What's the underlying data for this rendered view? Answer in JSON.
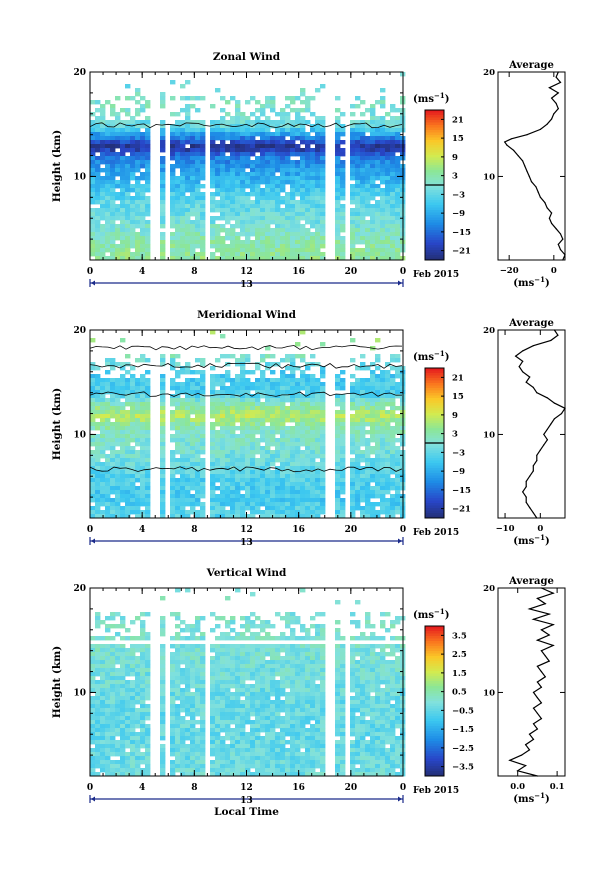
{
  "chart_data": [
    {
      "type": "heatmap",
      "title": "Zonal Wind",
      "ylabel": "Height (km)",
      "xticks": [
        "0",
        "4",
        "8",
        "12",
        "16",
        "20",
        "0"
      ],
      "yticks": [
        "10",
        "20"
      ],
      "ylim": [
        2,
        20
      ],
      "xlim": [
        0,
        24
      ],
      "date_label": "13",
      "date_suffix": "Feb 2015",
      "colorbar": {
        "unit_prefix": "(ms",
        "unit_exp": "−1",
        "unit_suffix": ")",
        "ticks": [
          "21",
          "15",
          "9",
          "3",
          "−3",
          "−9",
          "−15",
          "−21"
        ],
        "range": [
          -24,
          24
        ],
        "zero_line": 0
      },
      "contour_levels": [
        -3,
        3
      ],
      "gaps_hours": [
        [
          4.6,
          5.0
        ],
        [
          5.7,
          6.0
        ],
        [
          8.5,
          9.0
        ],
        [
          18.0,
          18.5
        ],
        [
          19.3,
          19.7
        ]
      ],
      "profile_by_height": [
        {
          "h": 2,
          "v": 5
        },
        {
          "h": 4,
          "v": 3
        },
        {
          "h": 6,
          "v": -1
        },
        {
          "h": 8,
          "v": -3
        },
        {
          "h": 10,
          "v": -8
        },
        {
          "h": 12,
          "v": -13
        },
        {
          "h": 13,
          "v": -22
        },
        {
          "h": 14,
          "v": -12
        },
        {
          "h": 15,
          "v": -2
        },
        {
          "h": 17,
          "v": 1
        },
        {
          "h": 19,
          "v": -1
        }
      ],
      "average": {
        "title": "Average",
        "xticks": [
          "−20",
          "0"
        ],
        "xlim": [
          -25,
          5
        ],
        "xlabel_prefix": "(ms",
        "xlabel_exp": "−1",
        "xlabel_suffix": ")",
        "yticks": [
          "10",
          "20"
        ],
        "heights": [
          2,
          2.5,
          3,
          3.5,
          4,
          4.5,
          5,
          5.5,
          6,
          6.5,
          7,
          7.5,
          8,
          8.5,
          9,
          9.5,
          10,
          10.5,
          11,
          11.5,
          12,
          12.5,
          13,
          13.3,
          13.6,
          14,
          14.5,
          15,
          15.5,
          16,
          16.5,
          17,
          17.5,
          18,
          18.5,
          19,
          19.5,
          20
        ],
        "values": [
          4,
          5,
          3,
          2,
          4,
          3,
          1,
          -1,
          -2,
          -1,
          -3,
          -4,
          -6,
          -7,
          -8,
          -10,
          -11,
          -12,
          -13,
          -14,
          -16,
          -18,
          -21,
          -22,
          -19,
          -12,
          -6,
          -3,
          -1,
          0,
          2,
          1,
          -1,
          2,
          -2,
          3,
          1,
          2
        ]
      }
    },
    {
      "type": "heatmap",
      "title": "Meridional Wind",
      "ylabel": "Height (km)",
      "xticks": [
        "0",
        "4",
        "8",
        "12",
        "16",
        "20",
        "0"
      ],
      "yticks": [
        "10",
        "20"
      ],
      "ylim": [
        2,
        20
      ],
      "xlim": [
        0,
        24
      ],
      "date_label": "13",
      "date_suffix": "Feb 2015",
      "colorbar": {
        "unit_prefix": "(ms",
        "unit_exp": "−1",
        "unit_suffix": ")",
        "ticks": [
          "21",
          "15",
          "9",
          "3",
          "−3",
          "−9",
          "−15",
          "−21"
        ],
        "range": [
          -24,
          24
        ],
        "zero_line": 0
      },
      "contour_levels": [
        -3,
        3
      ],
      "gaps_hours": [
        [
          4.6,
          5.0
        ],
        [
          5.7,
          6.0
        ],
        [
          8.5,
          9.0
        ],
        [
          18.0,
          18.5
        ],
        [
          19.3,
          19.7
        ]
      ],
      "profile_by_height": [
        {
          "h": 2,
          "v": -3
        },
        {
          "h": 4,
          "v": -5
        },
        {
          "h": 6,
          "v": -4
        },
        {
          "h": 8,
          "v": -1
        },
        {
          "h": 10,
          "v": 1
        },
        {
          "h": 11,
          "v": 3
        },
        {
          "h": 12,
          "v": 8
        },
        {
          "h": 13,
          "v": 3
        },
        {
          "h": 14,
          "v": -4
        },
        {
          "h": 16,
          "v": -5
        },
        {
          "h": 18,
          "v": 2
        },
        {
          "h": 19,
          "v": 5
        }
      ],
      "average": {
        "title": "Average",
        "xticks": [
          "−10",
          "0"
        ],
        "xlim": [
          -12,
          7
        ],
        "xlabel_prefix": "(ms",
        "xlabel_exp": "−1",
        "xlabel_suffix": ")",
        "yticks": [
          "10",
          "20"
        ],
        "heights": [
          2,
          2.5,
          3,
          3.5,
          4,
          4.5,
          5,
          5.5,
          6,
          6.5,
          7,
          7.5,
          8,
          8.5,
          9,
          9.5,
          10,
          10.5,
          11,
          11.5,
          12,
          12.5,
          13,
          13.5,
          14,
          14.5,
          15,
          15.5,
          16,
          16.5,
          17,
          17.5,
          18,
          18.5,
          19,
          19.5,
          20
        ],
        "values": [
          -1,
          -2,
          -3,
          -4,
          -4,
          -5,
          -4,
          -4,
          -3,
          -2,
          -2,
          -1,
          -1,
          0,
          1,
          2,
          1,
          2,
          3,
          4,
          6,
          7,
          4,
          2,
          -1,
          -2,
          -4,
          -3,
          -5,
          -6,
          -5,
          -7,
          -5,
          -2,
          3,
          5,
          4
        ]
      }
    },
    {
      "type": "heatmap",
      "title": "Vertical Wind",
      "ylabel": "Height (km)",
      "xlabel": "Local Time",
      "xticks": [
        "0",
        "4",
        "8",
        "12",
        "16",
        "20",
        "0"
      ],
      "yticks": [
        "10",
        "20"
      ],
      "ylim": [
        2,
        20
      ],
      "xlim": [
        0,
        24
      ],
      "date_label": "13",
      "date_suffix": "Feb 2015",
      "colorbar": {
        "unit_prefix": "(ms",
        "unit_exp": "−1",
        "unit_suffix": ")",
        "ticks": [
          "3.5",
          "2.5",
          "1.5",
          "0.5",
          "−0.5",
          "−1.5",
          "−2.5",
          "−3.5"
        ],
        "range": [
          -4,
          4
        ]
      },
      "gaps_hours": [
        [
          4.6,
          5.0
        ],
        [
          5.7,
          6.0
        ],
        [
          8.5,
          9.0
        ],
        [
          18.0,
          18.5
        ],
        [
          19.3,
          19.7
        ]
      ],
      "gap_heights": [
        [
          14.8,
          15.3
        ],
        [
          18.3,
          18.7
        ]
      ],
      "profile_by_height": [
        {
          "h": 2,
          "v": -0.2
        },
        {
          "h": 6,
          "v": -0.4
        },
        {
          "h": 10,
          "v": -0.3
        },
        {
          "h": 14,
          "v": 0.0
        },
        {
          "h": 18,
          "v": 0.1
        }
      ],
      "average": {
        "title": "Average",
        "xticks": [
          "0.0",
          "0.1"
        ],
        "xlim": [
          -0.05,
          0.12
        ],
        "xlabel_prefix": "(ms",
        "xlabel_exp": "−1",
        "xlabel_suffix": ")",
        "yticks": [
          "10",
          "20"
        ],
        "heights": [
          2,
          2.5,
          3,
          3.5,
          4,
          4.5,
          5,
          5.5,
          6,
          6.5,
          7,
          7.5,
          8,
          8.5,
          9,
          9.5,
          10,
          10.5,
          11,
          11.5,
          12,
          12.5,
          13,
          13.5,
          14,
          14.5,
          15,
          15.5,
          16,
          16.5,
          17,
          17.5,
          18,
          18.5,
          19,
          19.5,
          20
        ],
        "values": [
          0.05,
          0.0,
          0.02,
          -0.02,
          0.01,
          0.03,
          0.02,
          0.04,
          0.03,
          0.05,
          0.04,
          0.06,
          0.05,
          0.04,
          0.06,
          0.05,
          0.04,
          0.06,
          0.05,
          0.07,
          0.06,
          0.05,
          0.08,
          0.07,
          0.06,
          0.09,
          0.05,
          0.08,
          0.06,
          0.09,
          0.04,
          0.08,
          0.03,
          0.07,
          0.05,
          0.09,
          0.06
        ]
      }
    }
  ]
}
